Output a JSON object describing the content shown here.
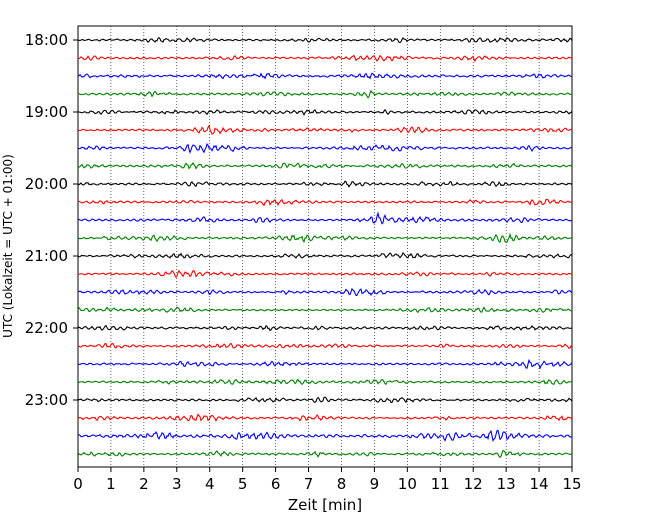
{
  "chart_data": {
    "type": "line",
    "title": "",
    "xlabel": "Zeit  [min]",
    "ylabel": "UTC (Lokalzeit = UTC + 01:00)",
    "xlim": [
      0,
      15
    ],
    "x_ticks": [
      0,
      1,
      2,
      3,
      4,
      5,
      6,
      7,
      8,
      9,
      10,
      11,
      12,
      13,
      14,
      15
    ],
    "y_tick_labels": [
      "18:00",
      "19:00",
      "20:00",
      "21:00",
      "22:00",
      "23:00"
    ],
    "grid": "vertical dotted",
    "row_minutes": 15,
    "trace_colors": [
      "#000000",
      "#ff0000",
      "#0000ff",
      "#008000"
    ],
    "traces": [
      {
        "start": "18:00",
        "color": "#000000",
        "amplitude": 1.0
      },
      {
        "start": "18:15",
        "color": "#ff0000",
        "amplitude": 1.0
      },
      {
        "start": "18:30",
        "color": "#0000ff",
        "amplitude": 1.2
      },
      {
        "start": "18:45",
        "color": "#008000",
        "amplitude": 1.0
      },
      {
        "start": "19:00",
        "color": "#000000",
        "amplitude": 1.0
      },
      {
        "start": "19:15",
        "color": "#ff0000",
        "amplitude": 1.0
      },
      {
        "start": "19:30",
        "color": "#0000ff",
        "amplitude": 1.0
      },
      {
        "start": "19:45",
        "color": "#008000",
        "amplitude": 1.0
      },
      {
        "start": "20:00",
        "color": "#000000",
        "amplitude": 1.0
      },
      {
        "start": "20:15",
        "color": "#ff0000",
        "amplitude": 1.0
      },
      {
        "start": "20:30",
        "color": "#0000ff",
        "amplitude": 1.1
      },
      {
        "start": "20:45",
        "color": "#008000",
        "amplitude": 1.0
      },
      {
        "start": "21:00",
        "color": "#000000",
        "amplitude": 1.0
      },
      {
        "start": "21:15",
        "color": "#ff0000",
        "amplitude": 1.0
      },
      {
        "start": "21:30",
        "color": "#0000ff",
        "amplitude": 1.0
      },
      {
        "start": "21:45",
        "color": "#008000",
        "amplitude": 0.9
      },
      {
        "start": "22:00",
        "color": "#000000",
        "amplitude": 1.1
      },
      {
        "start": "22:15",
        "color": "#ff0000",
        "amplitude": 0.9
      },
      {
        "start": "22:30",
        "color": "#0000ff",
        "amplitude": 1.0
      },
      {
        "start": "22:45",
        "color": "#008000",
        "amplitude": 1.0
      },
      {
        "start": "23:00",
        "color": "#000000",
        "amplitude": 1.0
      },
      {
        "start": "23:15",
        "color": "#ff0000",
        "amplitude": 1.0,
        "event_minute": 14.5
      },
      {
        "start": "23:30",
        "color": "#0000ff",
        "amplitude": 1.5
      },
      {
        "start": "23:45",
        "color": "#008000",
        "amplitude": 1.0
      }
    ]
  }
}
